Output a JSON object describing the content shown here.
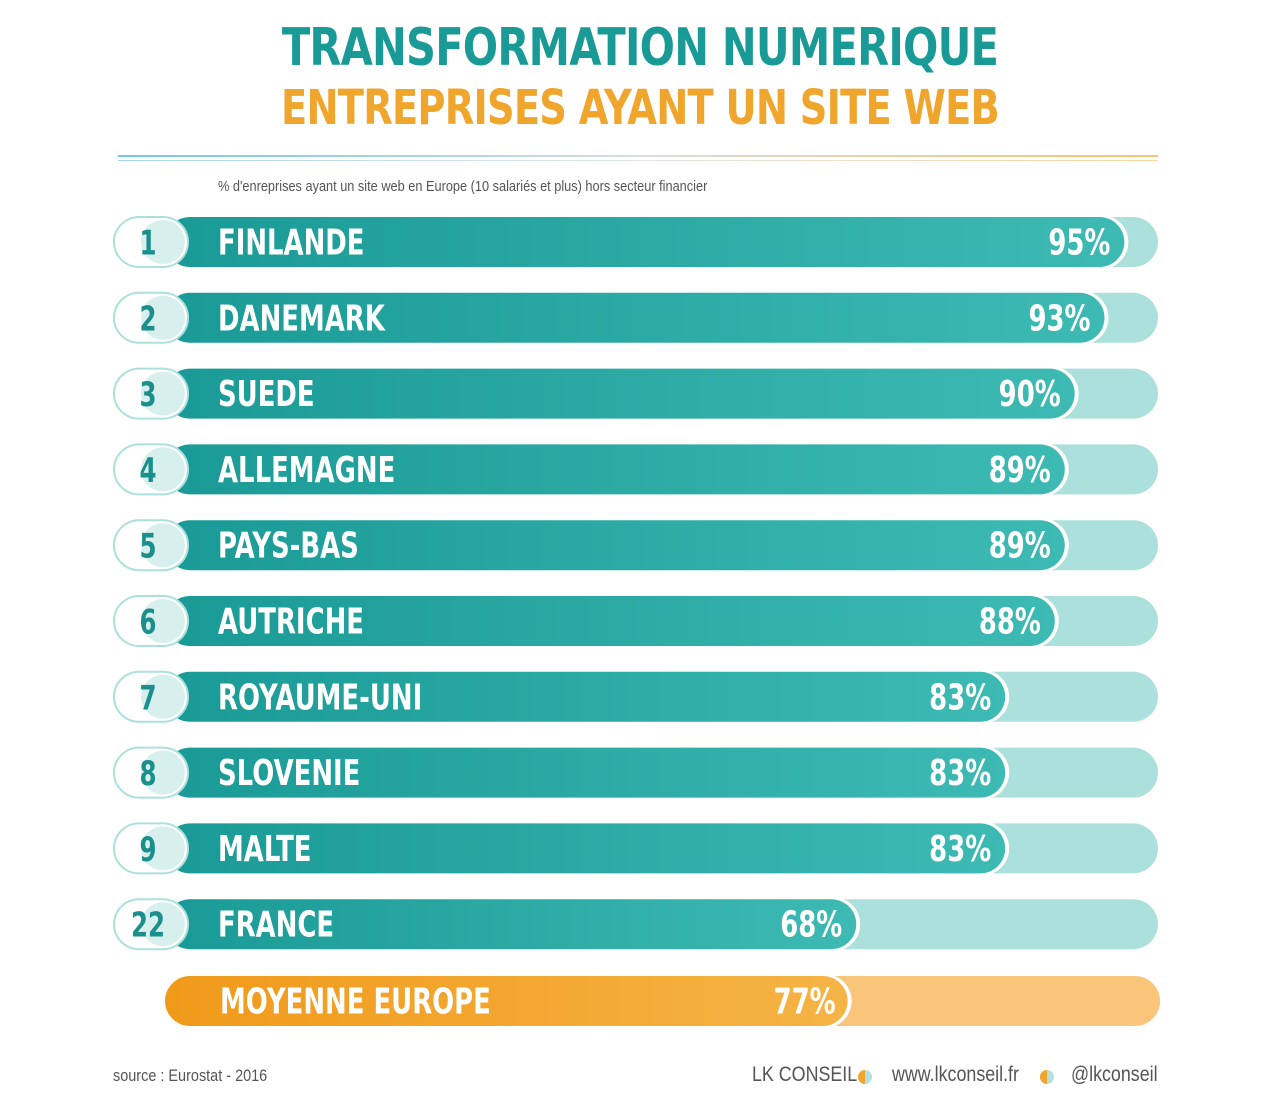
{
  "header": {
    "title": "TRANSFORMATION NUMERIQUE",
    "subtitle": "ENTREPRISES AYANT UN SITE WEB"
  },
  "chart_data": {
    "type": "bar",
    "orientation": "horizontal",
    "title": "TRANSFORMATION NUMERIQUE",
    "subtitle": "ENTREPRISES AYANT UN SITE WEB",
    "description_label": "% d'enreprises ayant un site web en Europe (10 salariés et plus) hors secteur financier",
    "unit": "%",
    "xlim": [
      0,
      100
    ],
    "ranks": [
      "1",
      "2",
      "3",
      "4",
      "5",
      "6",
      "7",
      "8",
      "9",
      "22"
    ],
    "categories": [
      "FINLANDE",
      "DANEMARK",
      "SUEDE",
      "ALLEMAGNE",
      "PAYS-BAS",
      "AUTRICHE",
      "ROYAUME-UNI",
      "SLOVENIE",
      "MALTE",
      "FRANCE"
    ],
    "values": [
      95,
      93,
      90,
      89,
      89,
      88,
      83,
      83,
      83,
      68
    ],
    "value_labels": [
      "95%",
      "93%",
      "90%",
      "89%",
      "89%",
      "88%",
      "83%",
      "83%",
      "83%",
      "68%"
    ],
    "average": {
      "label": "MOYENNE EUROPE",
      "value": 77,
      "value_label": "77%"
    },
    "colors": {
      "bar": "#1a9a96",
      "bar_light": "#3dbab3",
      "track": "#ace0dc",
      "rank_text": "#1a8f8b",
      "average_bar": "#f09a1a",
      "average_track": "#f8c57b"
    },
    "grid": false,
    "legend": "none"
  },
  "footer": {
    "source": "source : Eurostat - 2016",
    "brand": "LK CONSEIL",
    "website": "www.lkconseil.fr",
    "handle": "@lkconseil"
  }
}
